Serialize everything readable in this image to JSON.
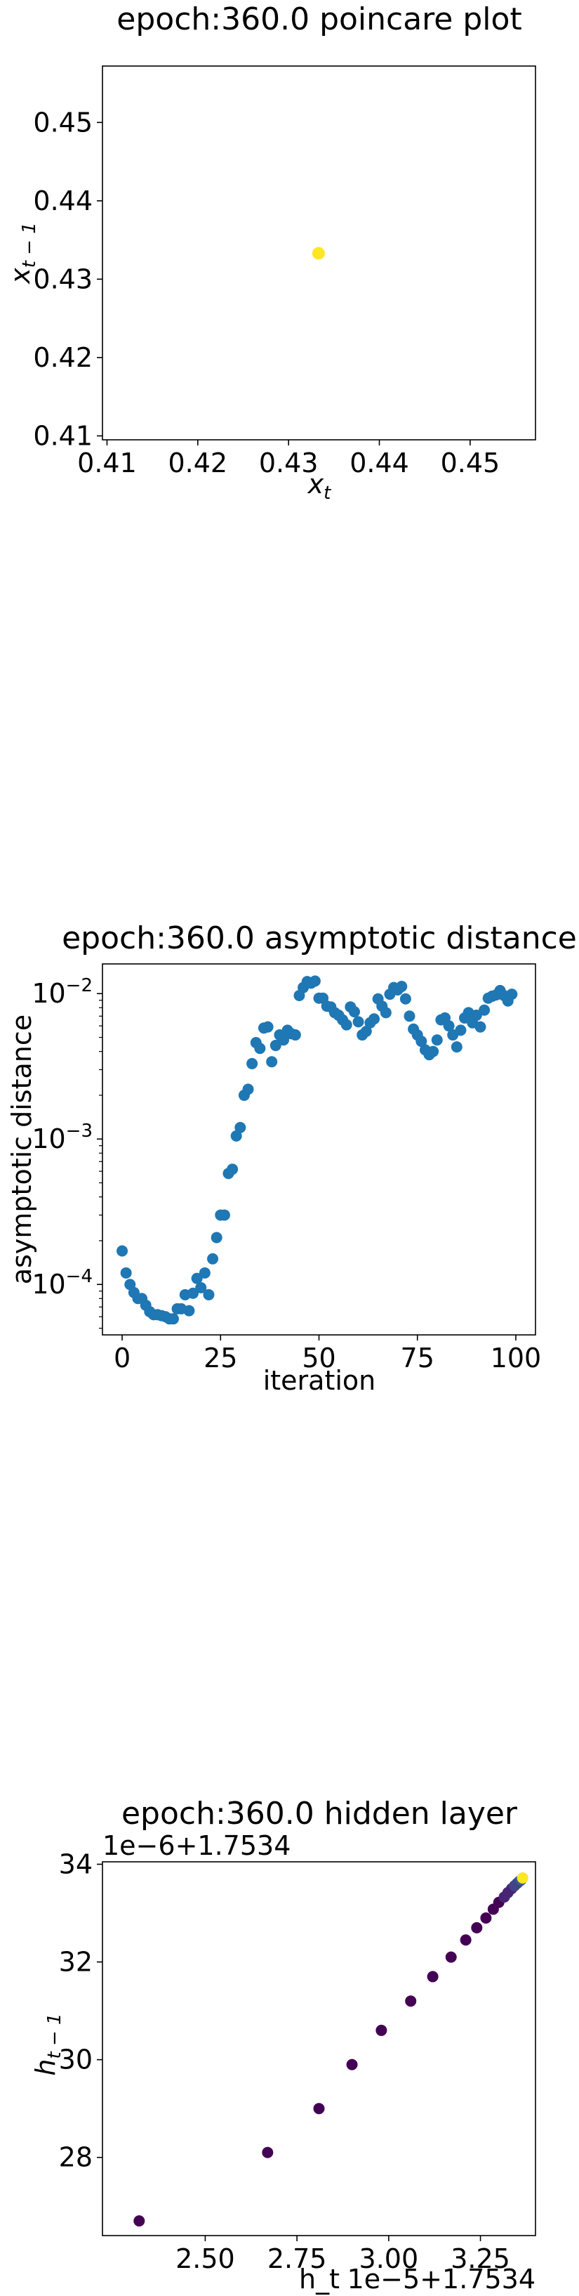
{
  "chart_data": [
    {
      "type": "scatter",
      "title": "epoch:360.0 poincare plot",
      "xlabel_base": "x",
      "xlabel_sub": "t",
      "ylabel_base": "x",
      "ylabel_sub": "t − 1",
      "xlim": [
        0.4095,
        0.4572
      ],
      "ylim": [
        0.4095,
        0.4572
      ],
      "xticks": [
        0.41,
        0.42,
        0.43,
        0.44,
        0.45
      ],
      "yticks": [
        0.41,
        0.42,
        0.43,
        0.44,
        0.45
      ],
      "xtick_labels": [
        "0.41",
        "0.42",
        "0.43",
        "0.44",
        "0.45"
      ],
      "ytick_labels": [
        "0.41",
        "0.42",
        "0.43",
        "0.44",
        "0.45"
      ],
      "points": [
        {
          "x": 0.4333,
          "y": 0.4333
        }
      ],
      "point_color": "#fde725"
    },
    {
      "type": "scatter",
      "title": "epoch:360.0 asymptotic distance",
      "xlabel": "iteration",
      "ylabel": "asymptotic distance",
      "yscale": "log",
      "xlim": [
        -5,
        105
      ],
      "ylim": [
        4.5e-05,
        0.016
      ],
      "xticks": [
        0,
        25,
        50,
        75,
        100
      ],
      "xtick_labels": [
        "0",
        "25",
        "50",
        "75",
        "100"
      ],
      "yticks": [
        0.0001,
        0.001,
        0.01
      ],
      "ytick_labels": [
        {
          "base": "10",
          "exp": "−4"
        },
        {
          "base": "10",
          "exp": "−3"
        },
        {
          "base": "10",
          "exp": "−2"
        }
      ],
      "point_color": "#1f77b4",
      "x": [
        0,
        1,
        2,
        3,
        4,
        5,
        6,
        7,
        8,
        9,
        10,
        11,
        12,
        13,
        14,
        15,
        16,
        17,
        18,
        19,
        20,
        21,
        22,
        23,
        24,
        25,
        26,
        27,
        28,
        29,
        30,
        31,
        32,
        33,
        34,
        35,
        36,
        37,
        38,
        39,
        40,
        41,
        42,
        43,
        44,
        45,
        46,
        47,
        48,
        49,
        50,
        51,
        52,
        53,
        54,
        55,
        56,
        57,
        58,
        59,
        60,
        61,
        62,
        63,
        64,
        65,
        66,
        67,
        68,
        69,
        70,
        71,
        72,
        73,
        74,
        75,
        76,
        77,
        78,
        79,
        80,
        81,
        82,
        83,
        84,
        85,
        86,
        87,
        88,
        89,
        90,
        91,
        92,
        93,
        94,
        95,
        96,
        97,
        98,
        99
      ],
      "y": [
        0.00017,
        0.00012,
        0.0001,
        8.8e-05,
        8e-05,
        8e-05,
        7.2e-05,
        6.5e-05,
        6.2e-05,
        6.2e-05,
        6.1e-05,
        6e-05,
        5.8e-05,
        5.8e-05,
        6.8e-05,
        6.8e-05,
        8.5e-05,
        6.6e-05,
        8.7e-05,
        0.00011,
        9.5e-05,
        0.00012,
        8.5e-05,
        0.00015,
        0.00021,
        0.0003,
        0.0003,
        0.00058,
        0.00062,
        0.00105,
        0.0012,
        0.002,
        0.0022,
        0.0033,
        0.0046,
        0.0042,
        0.0058,
        0.0059,
        0.0034,
        0.0044,
        0.0052,
        0.0048,
        0.0056,
        0.0053,
        0.0052,
        0.0097,
        0.011,
        0.0121,
        0.0118,
        0.0122,
        0.0093,
        0.0093,
        0.0082,
        0.0081,
        0.0074,
        0.0071,
        0.0066,
        0.0061,
        0.0081,
        0.0075,
        0.0064,
        0.0052,
        0.0055,
        0.0063,
        0.0067,
        0.0092,
        0.0082,
        0.0074,
        0.0099,
        0.011,
        0.0106,
        0.0112,
        0.0092,
        0.007,
        0.0057,
        0.0052,
        0.0047,
        0.0041,
        0.0038,
        0.004,
        0.0048,
        0.0066,
        0.0068,
        0.006,
        0.0052,
        0.0043,
        0.0056,
        0.0068,
        0.0074,
        0.0063,
        0.0071,
        0.0059,
        0.0077,
        0.0093,
        0.0096,
        0.0098,
        0.0105,
        0.0097,
        0.0089,
        0.0099
      ]
    },
    {
      "type": "scatter",
      "title": "epoch:360.0 hidden layer",
      "xlabel": "h_t",
      "ylabel_base": "h",
      "ylabel_sub": "t − 1",
      "x_offset_label": "1e−5+1.7534",
      "y_offset_label": "1e−6+1.7534",
      "xlim": [
        2.22,
        3.4
      ],
      "ylim": [
        26.4,
        34.05
      ],
      "xticks": [
        2.5,
        2.75,
        3.0,
        3.25
      ],
      "xtick_labels": [
        "2.50",
        "2.75",
        "3.00",
        "3.25"
      ],
      "yticks": [
        28,
        30,
        32,
        34
      ],
      "ytick_labels": [
        "28",
        "30",
        "32",
        "34"
      ],
      "colormap": [
        "#440154",
        "#482475",
        "#414487",
        "#355f8d",
        "#2a788e",
        "#21918c",
        "#22a884",
        "#44bf70",
        "#7ad151",
        "#bddf26",
        "#fde725"
      ],
      "x": [
        2.32,
        2.67,
        2.81,
        2.9,
        2.98,
        3.06,
        3.12,
        3.17,
        3.21,
        3.24,
        3.265,
        3.285,
        3.3,
        3.315,
        3.325,
        3.335,
        3.343,
        3.35,
        3.356,
        3.361,
        3.365
      ],
      "y": [
        26.7,
        28.1,
        29.0,
        29.9,
        30.6,
        31.2,
        31.7,
        32.1,
        32.45,
        32.7,
        32.9,
        33.08,
        33.22,
        33.33,
        33.42,
        33.5,
        33.56,
        33.61,
        33.65,
        33.68,
        33.72
      ]
    }
  ]
}
